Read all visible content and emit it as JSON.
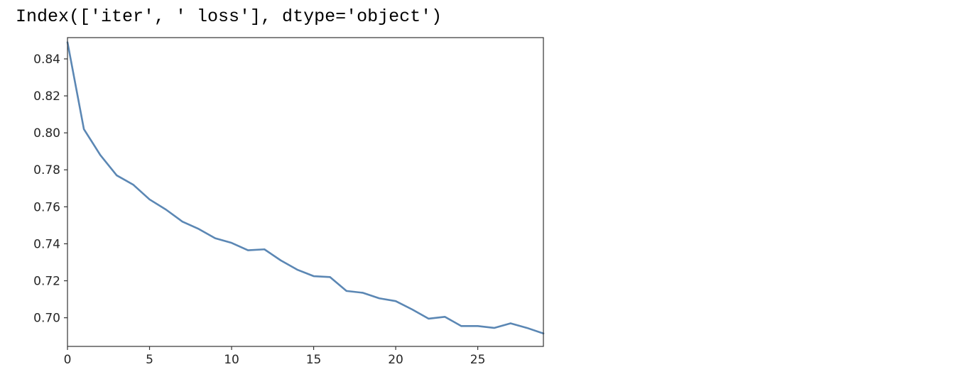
{
  "output": {
    "text": "Index(['iter', ' loss'], dtype='object')"
  },
  "chart_data": {
    "type": "line",
    "title": "",
    "xlabel": "",
    "ylabel": "",
    "xlim": [
      0,
      29
    ],
    "ylim": [
      0.6845,
      0.8515
    ],
    "x_ticks": [
      0,
      5,
      10,
      15,
      20,
      25
    ],
    "y_ticks": [
      0.7,
      0.72,
      0.74,
      0.76,
      0.78,
      0.8,
      0.82,
      0.84
    ],
    "y_tick_labels": [
      "0.70",
      "0.72",
      "0.74",
      "0.76",
      "0.78",
      "0.80",
      "0.82",
      "0.84"
    ],
    "grid": false,
    "series": [
      {
        "color": "#5b87b4",
        "x": [
          0,
          1,
          2,
          3,
          4,
          5,
          6,
          7,
          8,
          9,
          10,
          11,
          12,
          13,
          14,
          15,
          16,
          17,
          18,
          19,
          20,
          21,
          22,
          23,
          24,
          25,
          26,
          27,
          28,
          29
        ],
        "values": [
          0.849,
          0.802,
          0.788,
          0.777,
          0.772,
          0.764,
          0.7585,
          0.752,
          0.748,
          0.743,
          0.7405,
          0.7365,
          0.737,
          0.731,
          0.726,
          0.7225,
          0.722,
          0.7145,
          0.7135,
          0.7105,
          0.709,
          0.7045,
          0.6995,
          0.7005,
          0.6955,
          0.6955,
          0.6945,
          0.697,
          0.6945,
          0.6915
        ]
      }
    ]
  }
}
